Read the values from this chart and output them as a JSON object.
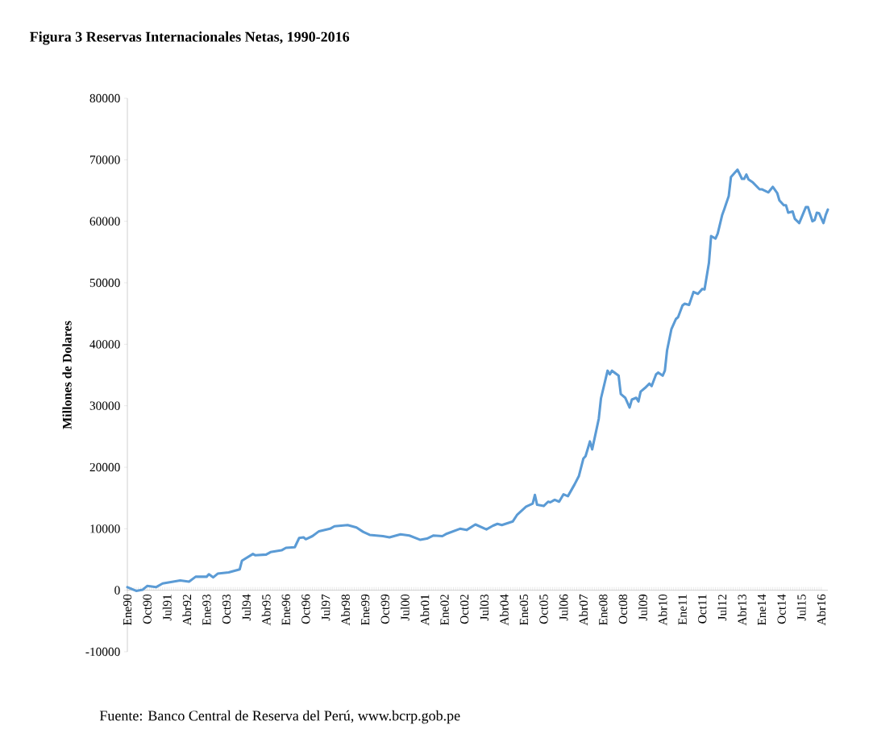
{
  "chart_data": {
    "type": "line",
    "title": "Figura 3 Reservas Internacionales Netas, 1990-2016",
    "ylabel": "Millones de Dolares",
    "annotations": [
      "Fuente: Banco Central de Reserva del Perú, www.bcrp.gob.pe"
    ],
    "x": [
      "1990-01",
      "1990-05",
      "1990-08",
      "1990-10",
      "1991-02",
      "1991-05",
      "1992-01",
      "1992-05",
      "1992-08",
      "1993-01",
      "1993-02",
      "1993-04",
      "1993-06",
      "1993-11",
      "1994-04",
      "1994-05",
      "1994-10",
      "1994-11",
      "1995-04",
      "1995-06",
      "1995-11",
      "1996-01",
      "1996-05",
      "1996-07",
      "1996-09",
      "1996-10",
      "1997-01",
      "1997-04",
      "1997-09",
      "1997-11",
      "1998-05",
      "1998-09",
      "1998-12",
      "1999-03",
      "1999-09",
      "1999-12",
      "2000-05",
      "2000-09",
      "2001-02",
      "2001-05",
      "2001-08",
      "2001-12",
      "2002-02",
      "2002-08",
      "2002-11",
      "2003-03",
      "2003-08",
      "2003-11",
      "2004-01",
      "2004-03",
      "2004-08",
      "2004-10",
      "2005-02",
      "2005-05",
      "2005-06",
      "2005-07",
      "2005-10",
      "2005-12",
      "2006-01",
      "2006-03",
      "2006-05",
      "2006-07",
      "2006-09",
      "2006-12",
      "2007-02",
      "2007-04",
      "2007-05",
      "2007-07",
      "2007-08",
      "2007-10",
      "2007-11",
      "2007-12",
      "2008-03",
      "2008-04",
      "2008-05",
      "2008-08",
      "2008-09",
      "2008-11",
      "2009-01",
      "2009-02",
      "2009-04",
      "2009-05",
      "2009-06",
      "2009-08",
      "2009-10",
      "2009-11",
      "2010-01",
      "2010-02",
      "2010-04",
      "2010-05",
      "2010-06",
      "2010-08",
      "2010-10",
      "2010-11",
      "2011-01",
      "2011-02",
      "2011-04",
      "2011-06",
      "2011-08",
      "2011-10",
      "2011-11",
      "2012-01",
      "2012-02",
      "2012-04",
      "2012-05",
      "2012-07",
      "2012-08",
      "2012-10",
      "2012-11",
      "2013-02",
      "2013-04",
      "2013-05",
      "2013-06",
      "2013-07",
      "2013-09",
      "2013-12",
      "2014-01",
      "2014-04",
      "2014-06",
      "2014-08",
      "2014-09",
      "2014-11",
      "2014-12",
      "2015-01",
      "2015-03",
      "2015-04",
      "2015-06",
      "2015-09",
      "2015-10",
      "2015-12",
      "2016-01",
      "2016-02",
      "2016-03",
      "2016-05",
      "2016-06",
      "2016-07"
    ],
    "values": [
      500,
      -100,
      100,
      700,
      500,
      1100,
      1600,
      1400,
      2200,
      2200,
      2600,
      2100,
      2700,
      2900,
      3400,
      4800,
      5900,
      5700,
      5800,
      6200,
      6500,
      6900,
      7000,
      8500,
      8600,
      8300,
      8800,
      9600,
      10000,
      10400,
      10600,
      10200,
      9500,
      9000,
      8800,
      8600,
      9100,
      8900,
      8200,
      8400,
      8900,
      8800,
      9200,
      10000,
      9800,
      10700,
      9900,
      10500,
      10800,
      10600,
      11200,
      12300,
      13600,
      14100,
      15500,
      13900,
      13700,
      14400,
      14300,
      14700,
      14400,
      15600,
      15300,
      17200,
      18600,
      21400,
      21800,
      24200,
      22900,
      26200,
      27900,
      31200,
      35700,
      35100,
      35700,
      34900,
      31900,
      31300,
      29700,
      31000,
      31300,
      30700,
      32300,
      32900,
      33600,
      33200,
      35100,
      35400,
      34900,
      35700,
      39000,
      42500,
      44100,
      44400,
      46300,
      46600,
      46400,
      48500,
      48200,
      49000,
      48900,
      53200,
      57600,
      57200,
      58000,
      61000,
      62000,
      64100,
      67200,
      68400,
      66900,
      66900,
      67600,
      66800,
      66300,
      65200,
      65200,
      64700,
      65600,
      64600,
      63400,
      62600,
      62600,
      61400,
      61600,
      60400,
      59700,
      62300,
      62300,
      60000,
      60200,
      61400,
      61300,
      59700,
      61000,
      61900
    ],
    "color": "#5b9bd5",
    "xlim": [
      "1990-01",
      "2016-07"
    ],
    "ylim": [
      -10000,
      80000
    ],
    "yticks": [
      -10000,
      0,
      10000,
      20000,
      30000,
      40000,
      50000,
      60000,
      70000,
      80000
    ],
    "xticks": [
      {
        "value": "1990-01",
        "label": "Ene90"
      },
      {
        "value": "1990-10",
        "label": "Oct90"
      },
      {
        "value": "1991-07",
        "label": "Jul91"
      },
      {
        "value": "1992-04",
        "label": "Abr92"
      },
      {
        "value": "1993-01",
        "label": "Ene93"
      },
      {
        "value": "1993-10",
        "label": "Oct93"
      },
      {
        "value": "1994-07",
        "label": "Jul94"
      },
      {
        "value": "1995-04",
        "label": "Abr95"
      },
      {
        "value": "1996-01",
        "label": "Ene96"
      },
      {
        "value": "1996-10",
        "label": "Oct96"
      },
      {
        "value": "1997-07",
        "label": "Jul97"
      },
      {
        "value": "1998-04",
        "label": "Abr98"
      },
      {
        "value": "1999-01",
        "label": "Ene99"
      },
      {
        "value": "1999-10",
        "label": "Oct99"
      },
      {
        "value": "2000-07",
        "label": "Jul00"
      },
      {
        "value": "2001-04",
        "label": "Abr01"
      },
      {
        "value": "2002-01",
        "label": "Ene02"
      },
      {
        "value": "2002-10",
        "label": "Oct02"
      },
      {
        "value": "2003-07",
        "label": "Jul03"
      },
      {
        "value": "2004-04",
        "label": "Abr04"
      },
      {
        "value": "2005-01",
        "label": "Ene05"
      },
      {
        "value": "2005-10",
        "label": "Oct05"
      },
      {
        "value": "2006-07",
        "label": "Jul06"
      },
      {
        "value": "2007-04",
        "label": "Abr07"
      },
      {
        "value": "2008-01",
        "label": "Ene08"
      },
      {
        "value": "2008-10",
        "label": "Oct08"
      },
      {
        "value": "2009-07",
        "label": "Jul09"
      },
      {
        "value": "2010-04",
        "label": "Abr10"
      },
      {
        "value": "2011-01",
        "label": "Ene11"
      },
      {
        "value": "2011-10",
        "label": "Oct11"
      },
      {
        "value": "2012-07",
        "label": "Jul12"
      },
      {
        "value": "2013-04",
        "label": "Abr13"
      },
      {
        "value": "2014-01",
        "label": "Ene14"
      },
      {
        "value": "2014-10",
        "label": "Oct14"
      },
      {
        "value": "2015-07",
        "label": "Jul15"
      },
      {
        "value": "2016-04",
        "label": "Abr16"
      }
    ]
  }
}
